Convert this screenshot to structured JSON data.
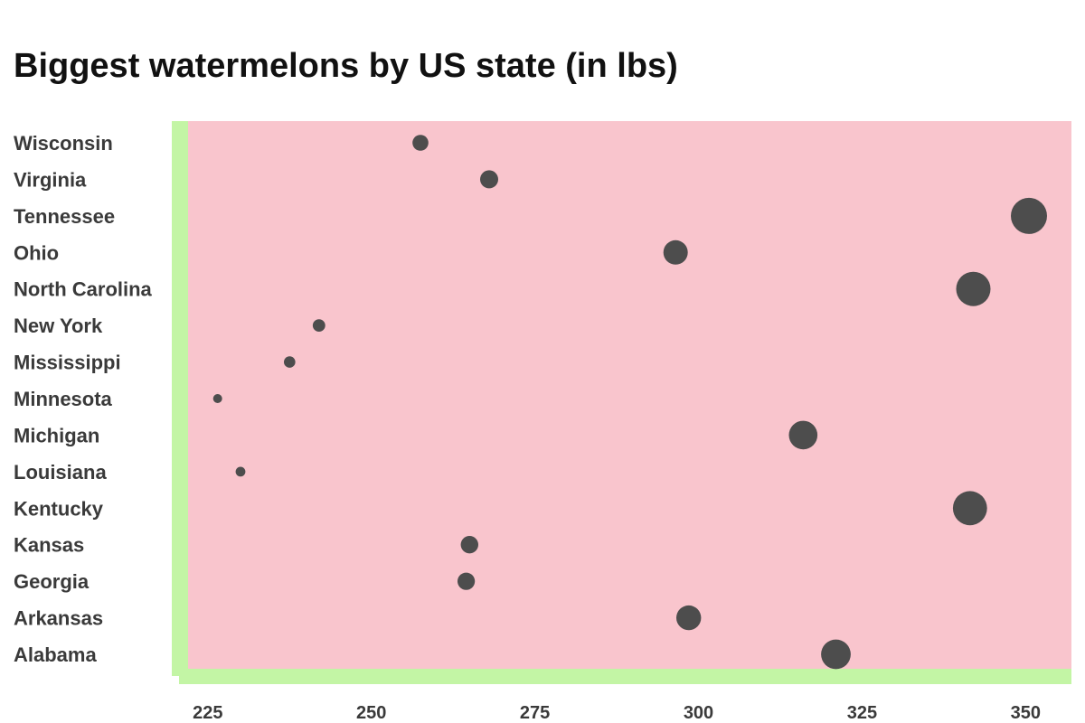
{
  "chart_data": {
    "type": "scatter",
    "title": "Biggest watermelons by US state (in lbs)",
    "xlabel": "",
    "ylabel": "",
    "xlim": [
      219.5,
      357
    ],
    "x_ticks": [
      225,
      250,
      275,
      300,
      325,
      350
    ],
    "size_encodes": "x",
    "categories": [
      "Wisconsin",
      "Virginia",
      "Tennessee",
      "Ohio",
      "North Carolina",
      "New York",
      "Mississippi",
      "Minnesota",
      "Michigan",
      "Louisiana",
      "Kentucky",
      "Kansas",
      "Georgia",
      "Arkansas",
      "Alabama"
    ],
    "values": [
      257.5,
      268,
      350.5,
      296.5,
      342,
      242,
      237.5,
      226.5,
      316,
      230,
      341.5,
      265,
      264.5,
      298.5,
      321
    ],
    "colors": {
      "panel": "#f9c5cd",
      "rind": "#c3f5a5",
      "point": "#4d4d4d"
    }
  }
}
